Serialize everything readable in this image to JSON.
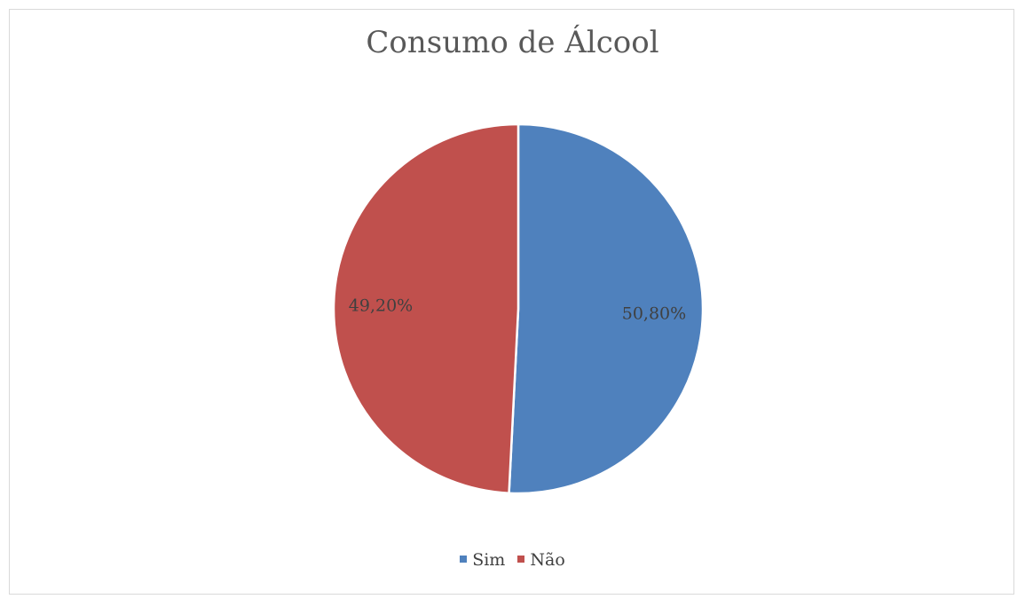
{
  "chart_data": {
    "type": "pie",
    "title": "Consumo de Álcool",
    "categories": [
      "Sim",
      "Não"
    ],
    "values": [
      50.8,
      49.2
    ],
    "data_labels": [
      "50,80%",
      "49,20%"
    ],
    "colors": [
      "#4f81bd",
      "#c0504d"
    ],
    "legend_position": "bottom"
  }
}
